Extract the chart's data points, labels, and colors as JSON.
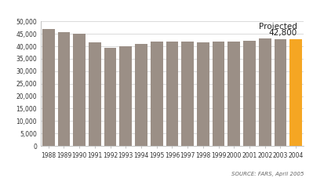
{
  "years": [
    "1988",
    "1989",
    "1990",
    "1991",
    "1992",
    "1993",
    "1994",
    "1995",
    "1996",
    "1997",
    "1998",
    "1999",
    "2000",
    "2001",
    "2002",
    "2003",
    "2004"
  ],
  "values": [
    47000,
    45800,
    44900,
    41500,
    39500,
    40100,
    40800,
    41800,
    42000,
    42000,
    41500,
    41800,
    41800,
    42200,
    43000,
    42800,
    42800
  ],
  "bar_color_gray": "#9b8f86",
  "bar_color_orange": "#f5a623",
  "annotation_line1": "Projected",
  "annotation_line2": "42,800",
  "source_text": "SOURCE: FARS, April 2005",
  "ylim": [
    0,
    50000
  ],
  "yticks": [
    0,
    5000,
    10000,
    15000,
    20000,
    25000,
    30000,
    35000,
    40000,
    45000,
    50000
  ],
  "background_color": "#ffffff",
  "grid_color": "#cccccc",
  "annotation_fontsize": 7.5,
  "tick_fontsize": 5.5,
  "source_fontsize": 5.0
}
